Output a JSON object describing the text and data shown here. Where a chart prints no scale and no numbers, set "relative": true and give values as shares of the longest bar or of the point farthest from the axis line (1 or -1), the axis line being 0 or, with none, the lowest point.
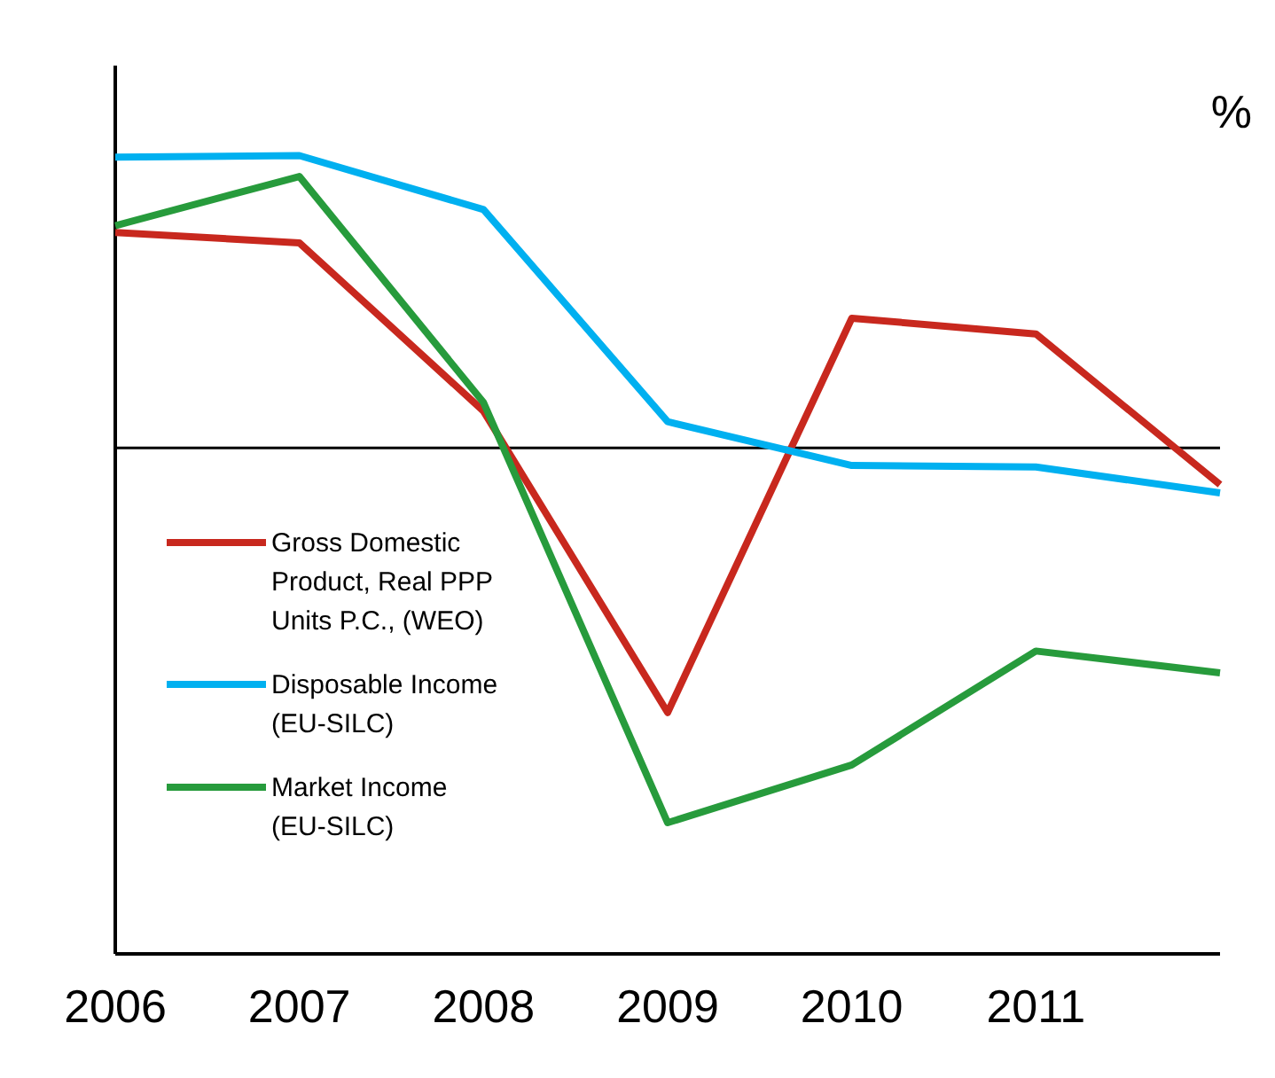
{
  "chart_data": {
    "type": "line",
    "relative": true,
    "categories": [
      "2006",
      "2007",
      "2008",
      "2009",
      "2010",
      "2011",
      null
    ],
    "series": [
      {
        "name": "Gross Domestic Product, Real PPP Units P.C., (WEO)",
        "color": "#c8281e",
        "values": [
          0.575,
          0.547,
          0.098,
          -0.706,
          0.346,
          0.304,
          -0.098
        ]
      },
      {
        "name": "Disposable Income (EU-SILC)",
        "color": "#00b0f0",
        "values": [
          0.776,
          0.78,
          0.636,
          0.07,
          -0.047,
          -0.051,
          -0.12
        ]
      },
      {
        "name": "Market Income (EU-SILC)",
        "color": "#279b3c",
        "values": [
          0.593,
          0.724,
          0.121,
          -1,
          -0.846,
          -0.542,
          -0.6
        ]
      }
    ],
    "annotations": [
      "%"
    ],
    "legend": "left",
    "marker": "none",
    "line_style": "solid"
  }
}
